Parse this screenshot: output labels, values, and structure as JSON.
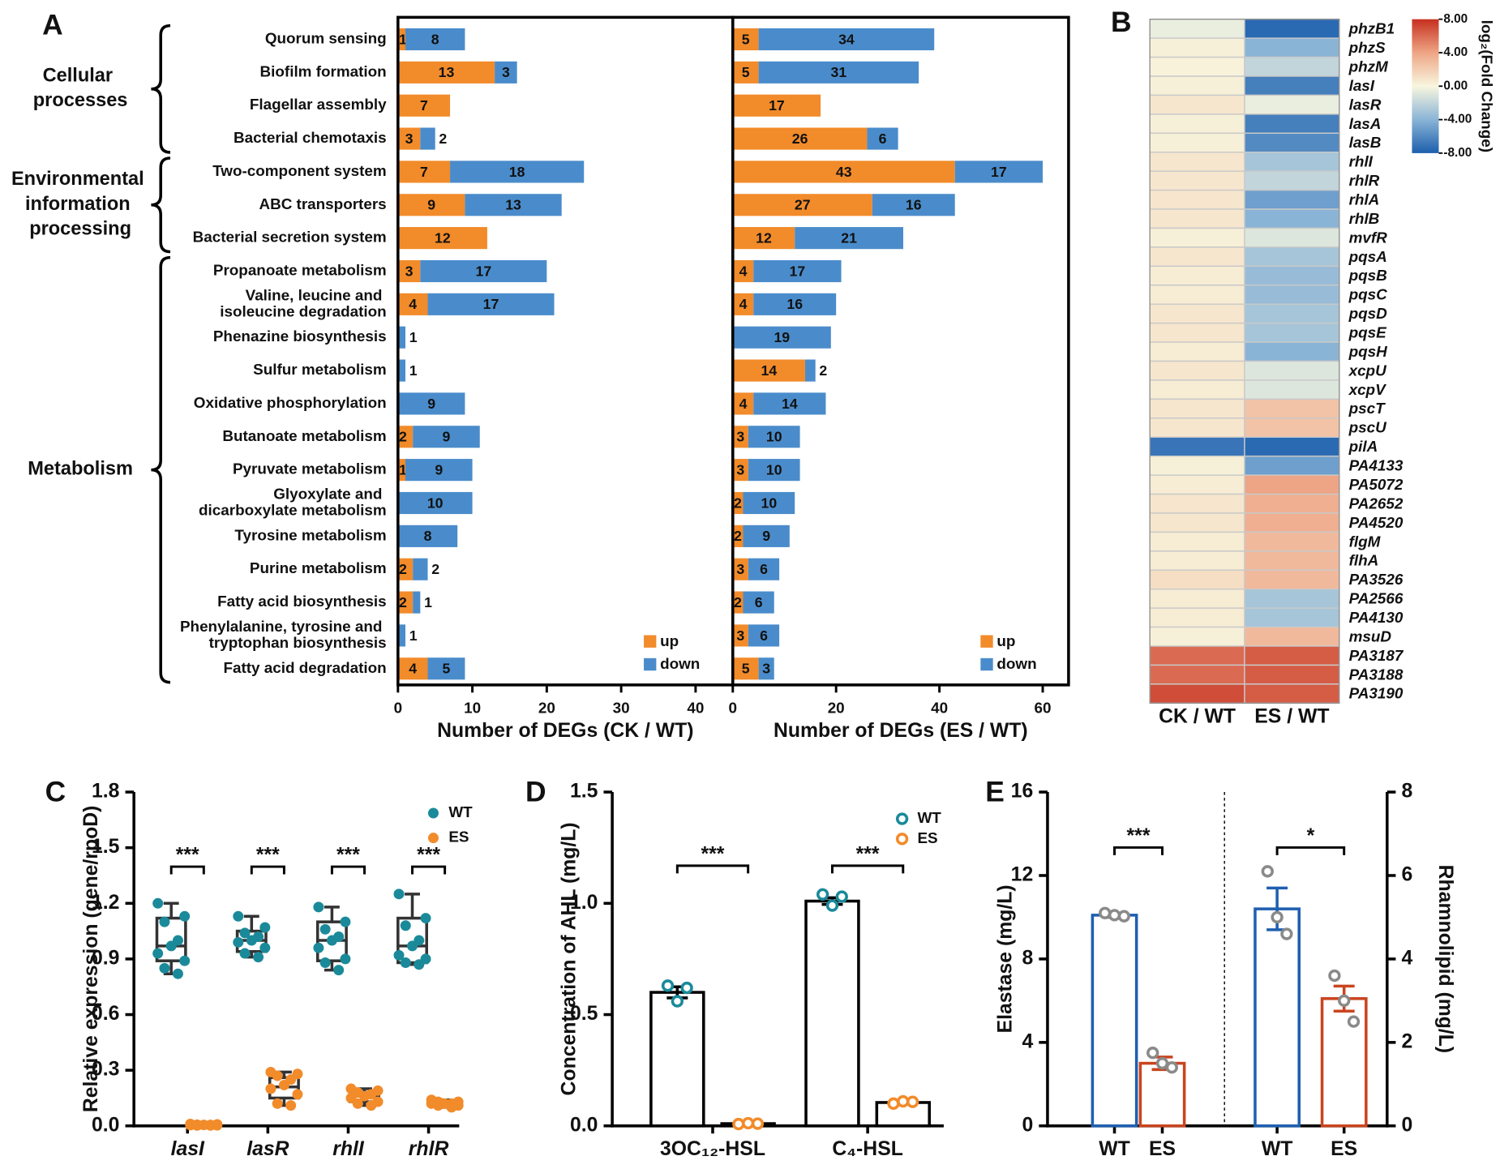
{
  "chart_data": [
    {
      "type": "bar",
      "orientation": "horizontal",
      "panel": "A",
      "categories": [
        "Quorum sensing",
        "Biofilm formation",
        "Flagellar assembly",
        "Bacterial chemotaxis",
        "Two-component system",
        "ABC transporters",
        "Bacterial secretion system",
        "Propanoate metabolism",
        "Valine, leucine and isoleucine degradation",
        "Phenazine biosynthesis",
        "Sulfur metabolism",
        "Oxidative phosphorylation",
        "Butanoate metabolism",
        "Pyruvate metabolism",
        "Glyoxylate and dicarboxylate metabolism",
        "Tyrosine metabolism",
        "Purine metabolism",
        "Fatty acid biosynthesis",
        "Phenylalanine, tyrosine and tryptophan biosynthesis",
        "Fatty acid degradation"
      ],
      "groups": [
        "Cellular processes",
        "Environmental information processing",
        "Metabolism"
      ],
      "series": [
        {
          "name": "up",
          "color": "#f28b2a",
          "values": [
            1,
            13,
            7,
            3,
            7,
            9,
            12,
            3,
            4,
            null,
            null,
            null,
            2,
            1,
            null,
            null,
            2,
            2,
            null,
            4
          ]
        },
        {
          "name": "down",
          "color": "#4a8ccb",
          "values": [
            8,
            3,
            null,
            2,
            18,
            13,
            null,
            17,
            17,
            1,
            1,
            9,
            9,
            9,
            10,
            8,
            2,
            1,
            1,
            5
          ]
        }
      ],
      "xlabel": "Number of DEGs (CK / WT)",
      "xlim": [
        0,
        45
      ],
      "xticks": [
        0,
        10,
        20,
        30,
        40
      ],
      "legend": "lower right"
    },
    {
      "type": "bar",
      "orientation": "horizontal",
      "series": [
        {
          "name": "up",
          "color": "#f28b2a",
          "values": [
            5,
            5,
            17,
            26,
            43,
            27,
            12,
            4,
            4,
            null,
            14,
            4,
            3,
            3,
            2,
            2,
            3,
            2,
            3,
            5
          ]
        },
        {
          "name": "down",
          "color": "#4a8ccb",
          "values": [
            34,
            31,
            null,
            6,
            17,
            16,
            21,
            17,
            16,
            19,
            2,
            14,
            10,
            10,
            10,
            9,
            6,
            6,
            6,
            3
          ]
        }
      ],
      "xlabel": "Number of DEGs (ES / WT)",
      "xlim": [
        0,
        65
      ],
      "xticks": [
        0,
        20,
        40,
        60
      ],
      "legend": "lower right"
    },
    {
      "type": "heatmap",
      "panel": "B",
      "rows": [
        "phzB1",
        "phzS",
        "phzM",
        "lasI",
        "lasR",
        "lasA",
        "lasB",
        "rhlI",
        "rhlR",
        "rhlA",
        "rhlB",
        "mvfR",
        "pqsA",
        "pqsB",
        "pqsC",
        "pqsD",
        "pqsE",
        "pqsH",
        "xcpU",
        "xcpV",
        "pscT",
        "pscU",
        "pilA",
        "PA4133",
        "PA5072",
        "PA2652",
        "PA4520",
        "flgM",
        "flhA",
        "PA3526",
        "PA2566",
        "PA4130",
        "msuD",
        "PA3187",
        "PA3188",
        "PA3190"
      ],
      "columns": [
        "CK / WT",
        "ES / WT"
      ],
      "values": [
        [
          -0.5,
          -7.5
        ],
        [
          0.3,
          -4
        ],
        [
          0.2,
          -2
        ],
        [
          0.3,
          -6.5
        ],
        [
          0.8,
          -0.5
        ],
        [
          0.3,
          -6.5
        ],
        [
          0.3,
          -6
        ],
        [
          0.8,
          -3
        ],
        [
          0.8,
          -2
        ],
        [
          0.8,
          -5
        ],
        [
          0.8,
          -4
        ],
        [
          0.3,
          -1
        ],
        [
          0.8,
          -3
        ],
        [
          0.5,
          -3.5
        ],
        [
          0.5,
          -3.5
        ],
        [
          0.8,
          -3
        ],
        [
          0.8,
          -3
        ],
        [
          0.5,
          -4
        ],
        [
          0.8,
          -1
        ],
        [
          0.5,
          -1
        ],
        [
          0.8,
          2.5
        ],
        [
          0.8,
          2.5
        ],
        [
          -7,
          -7.5
        ],
        [
          0.3,
          -5
        ],
        [
          0.5,
          4
        ],
        [
          0.8,
          3.5
        ],
        [
          0.8,
          3.5
        ],
        [
          0.5,
          3
        ],
        [
          0.5,
          3
        ],
        [
          1.2,
          3
        ],
        [
          0.5,
          -3
        ],
        [
          0.5,
          -3
        ],
        [
          0.3,
          3
        ],
        [
          6,
          6.5
        ],
        [
          6,
          6.5
        ],
        [
          7,
          6.5
        ]
      ],
      "clim": [
        -8,
        8
      ],
      "colormap": [
        "#1c5fad",
        "#8ab4d6",
        "#f8f6df",
        "#eea585",
        "#c6301f"
      ],
      "cticks": [
        {
          "value": 8,
          "label": "8.00"
        },
        {
          "value": 4,
          "label": "4.00"
        },
        {
          "value": 0,
          "label": "0.00"
        },
        {
          "value": -4,
          "label": "-4.00"
        },
        {
          "value": -8,
          "label": "-8.00"
        }
      ],
      "colorbar_label": "log₂(Fold Change)"
    },
    {
      "type": "box",
      "panel": "C",
      "ylabel": "Relative expression (gene/rpoD)",
      "categories": [
        "lasI",
        "lasR",
        "rhlI",
        "rhlR"
      ],
      "ylim": [
        0,
        1.8
      ],
      "yticks": [
        {
          "value": 0,
          "label": "0.0"
        },
        {
          "value": 0.3,
          "label": "0.3"
        },
        {
          "value": 0.6,
          "label": "0.6"
        },
        {
          "value": 0.9,
          "label": "0.9"
        },
        {
          "value": 1.2,
          "label": "1.2"
        },
        {
          "value": 1.5,
          "label": "1.5"
        },
        {
          "value": 1.8,
          "label": "1.8"
        }
      ],
      "series": [
        {
          "name": "WT",
          "color": "#1a8a9a",
          "points": [
            [
              1.2,
              1.13,
              1.1,
              1.0,
              0.97,
              0.93,
              0.89,
              0.85,
              0.82
            ],
            [
              1.13,
              1.07,
              1.04,
              1.02,
              1.0,
              0.99,
              0.96,
              0.93,
              0.91
            ],
            [
              1.18,
              1.1,
              1.06,
              1.02,
              1.0,
              0.96,
              0.9,
              0.88,
              0.84
            ],
            [
              1.25,
              1.12,
              1.08,
              1.0,
              0.97,
              0.92,
              0.9,
              0.88,
              0.87
            ]
          ],
          "box": [
            [
              0.82,
              0.89,
              0.97,
              1.12,
              1.2
            ],
            [
              0.91,
              0.94,
              1.0,
              1.05,
              1.13
            ],
            [
              0.84,
              0.89,
              1.0,
              1.1,
              1.18
            ],
            [
              0.87,
              0.88,
              0.97,
              1.12,
              1.25
            ]
          ]
        },
        {
          "name": "ES",
          "color": "#f28b2a",
          "points": [
            [
              0.01,
              0.008,
              0.006,
              0.005,
              0.005,
              0.004,
              0.003,
              0.002,
              0.002
            ],
            [
              0.29,
              0.28,
              0.27,
              0.25,
              0.22,
              0.2,
              0.17,
              0.12,
              0.11
            ],
            [
              0.2,
              0.19,
              0.18,
              0.17,
              0.16,
              0.15,
              0.13,
              0.12,
              0.11
            ],
            [
              0.14,
              0.13,
              0.13,
              0.12,
              0.12,
              0.12,
              0.11,
              0.11,
              0.1
            ]
          ],
          "box": [
            [
              0.002,
              0.003,
              0.005,
              0.007,
              0.01
            ],
            [
              0.11,
              0.15,
              0.21,
              0.26,
              0.29
            ],
            [
              0.11,
              0.13,
              0.16,
              0.18,
              0.2
            ],
            [
              0.1,
              0.11,
              0.12,
              0.13,
              0.14
            ]
          ]
        }
      ],
      "annotations": [
        "***",
        "***",
        "***",
        "***"
      ],
      "legend": "upper right"
    },
    {
      "type": "bar",
      "panel": "D",
      "ylabel": "Concentration of AHL (mg/L)",
      "categories": [
        "3OC₁₂-HSL",
        "C₄-HSL"
      ],
      "ylim": [
        0,
        1.5
      ],
      "yticks": [
        {
          "value": 0,
          "label": "0.0"
        },
        {
          "value": 0.5,
          "label": "0.5"
        },
        {
          "value": 1,
          "label": "1.0"
        },
        {
          "value": 1.5,
          "label": "1.5"
        }
      ],
      "series": [
        {
          "name": "WT",
          "color": "#1a8a9a",
          "values": [
            0.6,
            1.01
          ],
          "errors": [
            0.025,
            0.015
          ],
          "points": [
            [
              0.63,
              0.56,
              0.62
            ],
            [
              1.04,
              0.99,
              1.03
            ]
          ]
        },
        {
          "name": "ES",
          "color": "#f28b2a",
          "values": [
            0.01,
            0.105
          ],
          "errors": [
            0.003,
            0.003
          ],
          "points": [
            [
              0.008,
              0.012,
              0.01
            ],
            [
              0.1,
              0.11,
              0.108
            ]
          ]
        }
      ],
      "annotations": [
        "***",
        "***"
      ],
      "legend": "upper right"
    },
    {
      "type": "bar",
      "panel": "E",
      "ylabel": "Elastase (mg/L)",
      "y2label": "Rhamnolipid (mg/L)",
      "categories": [
        "WT",
        "ES",
        "WT",
        "ES"
      ],
      "colors": [
        "#1f5fb0",
        "#c9451f",
        "#1f5fb0",
        "#c9451f"
      ],
      "point_color": "#8a8a8a",
      "ylim": [
        0,
        16
      ],
      "yticks": [
        0,
        4,
        8,
        12,
        16
      ],
      "y2lim": [
        0,
        8
      ],
      "y2ticks": [
        0,
        2,
        4,
        6,
        8
      ],
      "series": [
        {
          "values": [
            10.1,
            3.0,
            null,
            null
          ],
          "errors": [
            0.1,
            0.3,
            null,
            null
          ],
          "points": [
            [
              10.2,
              10.1,
              10.05
            ],
            [
              3.5,
              3.0,
              2.8
            ],
            null,
            null
          ]
        },
        {
          "axis": "y2",
          "values": [
            null,
            null,
            5.2,
            3.05
          ],
          "errors": [
            null,
            null,
            0.5,
            0.3
          ],
          "points": [
            null,
            null,
            [
              6.1,
              5.0,
              4.6
            ],
            [
              3.6,
              3.0,
              2.5
            ]
          ]
        }
      ],
      "annotations": [
        "***",
        "*"
      ]
    }
  ]
}
